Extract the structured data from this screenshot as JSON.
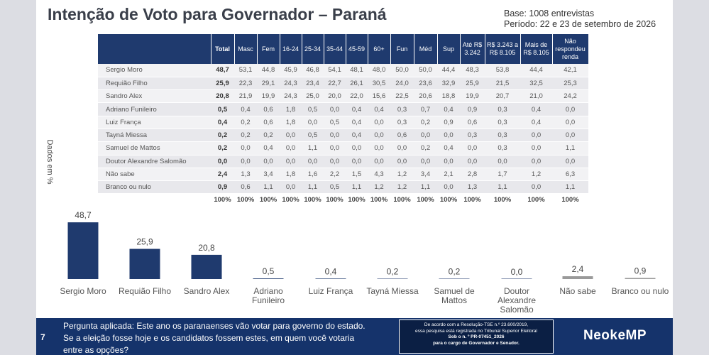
{
  "title": "Intenção de Voto para Governador – Paraná",
  "meta": {
    "base": "Base: 1008 entrevistas",
    "period": "Período: 22 e 23 de setembro de 2026"
  },
  "side_label": "Dados em %",
  "table": {
    "headers": [
      "Total",
      "Masc",
      "Fem",
      "16-24",
      "25-34",
      "35-44",
      "45-59",
      "60+",
      "Fun",
      "Méd",
      "Sup",
      "Até R$ 3.242",
      "R$ 3.243 a R$ 8.105",
      "Mais de R$ 8.105",
      "Não respondeu renda"
    ],
    "rows": [
      {
        "name": "Sergio Moro",
        "values": [
          "48,7",
          "53,1",
          "44,8",
          "45,9",
          "46,8",
          "54,1",
          "48,1",
          "48,0",
          "50,0",
          "50,0",
          "44,4",
          "48,3",
          "53,8",
          "44,4",
          "42,1"
        ]
      },
      {
        "name": "Requião Filho",
        "values": [
          "25,9",
          "22,3",
          "29,1",
          "24,3",
          "23,4",
          "22,7",
          "26,1",
          "30,5",
          "24,0",
          "23,6",
          "32,9",
          "25,9",
          "21,5",
          "32,5",
          "25,3"
        ]
      },
      {
        "name": "Sandro Alex",
        "values": [
          "20,8",
          "21,9",
          "19,9",
          "24,3",
          "25,0",
          "20,0",
          "22,0",
          "15,6",
          "22,5",
          "20,6",
          "18,8",
          "19,9",
          "20,7",
          "21,0",
          "24,2"
        ]
      },
      {
        "name": "Adriano Funileiro",
        "values": [
          "0,5",
          "0,4",
          "0,6",
          "1,8",
          "0,5",
          "0,0",
          "0,4",
          "0,4",
          "0,3",
          "0,7",
          "0,4",
          "0,9",
          "0,3",
          "0,4",
          "0,0"
        ]
      },
      {
        "name": "Luiz França",
        "values": [
          "0,4",
          "0,2",
          "0,6",
          "1,8",
          "0,0",
          "0,5",
          "0,4",
          "0,0",
          "0,3",
          "0,2",
          "0,9",
          "0,6",
          "0,3",
          "0,4",
          "0,0"
        ]
      },
      {
        "name": "Tayná Miessa",
        "values": [
          "0,2",
          "0,2",
          "0,2",
          "0,0",
          "0,5",
          "0,0",
          "0,4",
          "0,0",
          "0,6",
          "0,0",
          "0,0",
          "0,3",
          "0,3",
          "0,0",
          "0,0"
        ]
      },
      {
        "name": "Samuel de Mattos",
        "values": [
          "0,2",
          "0,0",
          "0,4",
          "0,0",
          "1,1",
          "0,0",
          "0,0",
          "0,0",
          "0,0",
          "0,2",
          "0,4",
          "0,0",
          "0,3",
          "0,0",
          "1,1"
        ]
      },
      {
        "name": "Doutor Alexandre Salomão",
        "values": [
          "0,0",
          "0,0",
          "0,0",
          "0,0",
          "0,0",
          "0,0",
          "0,0",
          "0,0",
          "0,0",
          "0,0",
          "0,0",
          "0,0",
          "0,0",
          "0,0",
          "0,0"
        ]
      },
      {
        "name": "Não sabe",
        "values": [
          "2,4",
          "1,3",
          "3,4",
          "1,8",
          "1,6",
          "2,2",
          "1,5",
          "4,3",
          "1,2",
          "3,4",
          "2,1",
          "2,8",
          "1,7",
          "1,2",
          "6,3"
        ]
      },
      {
        "name": "Branco ou nulo",
        "values": [
          "0,9",
          "0,6",
          "1,1",
          "0,0",
          "1,1",
          "0,5",
          "1,1",
          "1,2",
          "1,2",
          "1,1",
          "0,0",
          "1,3",
          "1,1",
          "0,0",
          "1,1"
        ]
      }
    ],
    "footer": [
      "100%",
      "100%",
      "100%",
      "100%",
      "100%",
      "100%",
      "100%",
      "100%",
      "100%",
      "100%",
      "100%",
      "100%",
      "100%",
      "100%",
      "100%"
    ]
  },
  "chart_data": {
    "type": "bar",
    "categories": [
      "Sergio Moro",
      "Requião Filho",
      "Sandro Alex",
      "Adriano Funileiro",
      "Luiz França",
      "Tayná Miessa",
      "Samuel de Mattos",
      "Doutor Alexandre Salomão",
      "Não sabe",
      "Branco ou nulo"
    ],
    "values": [
      48.7,
      25.9,
      20.8,
      0.5,
      0.4,
      0.2,
      0.2,
      0.0,
      2.4,
      0.9
    ],
    "value_labels": [
      "48,7",
      "25,9",
      "20,8",
      "0,5",
      "0,4",
      "0,2",
      "0,2",
      "0,0",
      "2,4",
      "0,9"
    ],
    "category_lines": [
      [
        "Sergio Moro"
      ],
      [
        "Requião Filho"
      ],
      [
        "Sandro Alex"
      ],
      [
        "Adriano",
        "Funileiro"
      ],
      [
        "Luiz França"
      ],
      [
        "Tayná Miessa"
      ],
      [
        "Samuel de",
        "Mattos"
      ],
      [
        "Doutor",
        "Alexandre",
        "Salomão"
      ],
      [
        "Não sabe"
      ],
      [
        "Branco ou nulo"
      ]
    ],
    "ylabel": "Dados em %",
    "ylim": [
      0,
      50
    ],
    "colors": {
      "candidate": "#1f3a6e",
      "other": "#9a9a9a"
    }
  },
  "footer": {
    "page_number": "7",
    "question_lines": [
      "Pergunta aplicada: Este ano os paranaenses vão votar para governo do estado.",
      "Se a eleição fosse hoje e os candidatos fossem estes, em quem você votaria",
      "entre as opções?"
    ],
    "tse_lines": [
      "De acordo com a Resolução-TSE n.º 23.600/2019,",
      "essa pesquisa está registrada no Tribunal Superior Eleitoral",
      "Sob o n. º PR-07451_2026",
      "para o cargo de Governador e Senador."
    ],
    "brand": "NeokeMP"
  }
}
